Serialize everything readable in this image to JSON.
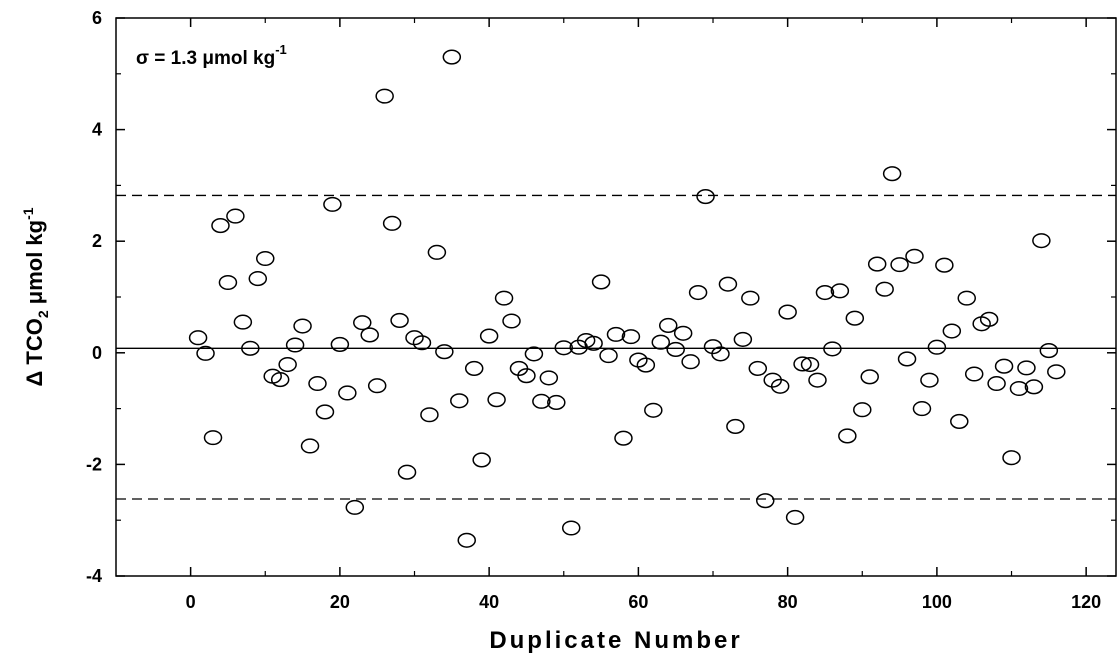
{
  "chart_data": {
    "type": "scatter",
    "xlabel": "Duplicate Number",
    "ylabel": {
      "prefix": "Δ TCO",
      "sub": "2",
      "unit": " μmol kg",
      "sup": "-1"
    },
    "annotation": {
      "text": "σ = 1.3 μmol kg",
      "sup": "-1"
    },
    "xlim": [
      -10,
      124
    ],
    "ylim": [
      -4,
      6
    ],
    "xticks": [
      0,
      20,
      40,
      60,
      80,
      100,
      120
    ],
    "yticks": [
      -4,
      -2,
      0,
      2,
      4,
      6
    ],
    "grid": false,
    "marker": "open-circle",
    "reference_lines": [
      {
        "y": 0.08,
        "style": "solid"
      },
      {
        "y": 2.82,
        "style": "dashed"
      },
      {
        "y": -2.62,
        "style": "dashed"
      }
    ],
    "points": [
      [
        1,
        0.27
      ],
      [
        2,
        -0.01
      ],
      [
        3,
        -1.52
      ],
      [
        4,
        2.28
      ],
      [
        5,
        1.26
      ],
      [
        6,
        2.45
      ],
      [
        7,
        0.55
      ],
      [
        8,
        0.08
      ],
      [
        9,
        1.33
      ],
      [
        10,
        1.69
      ],
      [
        11,
        -0.42
      ],
      [
        12,
        -0.48
      ],
      [
        13,
        -0.21
      ],
      [
        14,
        0.14
      ],
      [
        15,
        0.48
      ],
      [
        16,
        -1.67
      ],
      [
        17,
        -0.55
      ],
      [
        18,
        -1.06
      ],
      [
        19,
        2.66
      ],
      [
        20,
        0.15
      ],
      [
        21,
        -0.72
      ],
      [
        22,
        -2.77
      ],
      [
        23,
        0.54
      ],
      [
        24,
        0.32
      ],
      [
        25,
        -0.59
      ],
      [
        26,
        4.6
      ],
      [
        27,
        2.32
      ],
      [
        28,
        0.58
      ],
      [
        29,
        -2.14
      ],
      [
        30,
        0.27
      ],
      [
        31,
        0.18
      ],
      [
        32,
        -1.11
      ],
      [
        33,
        1.8
      ],
      [
        34,
        0.02
      ],
      [
        35,
        5.3
      ],
      [
        36,
        -0.86
      ],
      [
        37,
        -3.36
      ],
      [
        38,
        -0.28
      ],
      [
        39,
        -1.92
      ],
      [
        40,
        0.3
      ],
      [
        41,
        -0.84
      ],
      [
        42,
        0.98
      ],
      [
        43,
        0.57
      ],
      [
        44,
        -0.28
      ],
      [
        45,
        -0.41
      ],
      [
        46,
        -0.02
      ],
      [
        47,
        -0.87
      ],
      [
        48,
        -0.45
      ],
      [
        49,
        -0.89
      ],
      [
        50,
        0.09
      ],
      [
        51,
        -3.14
      ],
      [
        52,
        0.1
      ],
      [
        53,
        0.22
      ],
      [
        54,
        0.17
      ],
      [
        55,
        1.27
      ],
      [
        56,
        -0.05
      ],
      [
        57,
        0.33
      ],
      [
        58,
        -1.53
      ],
      [
        59,
        0.29
      ],
      [
        60,
        -0.13
      ],
      [
        61,
        -0.22
      ],
      [
        62,
        -1.03
      ],
      [
        63,
        0.19
      ],
      [
        64,
        0.49
      ],
      [
        65,
        0.06
      ],
      [
        66,
        0.35
      ],
      [
        67,
        -0.16
      ],
      [
        68,
        1.08
      ],
      [
        69,
        2.8
      ],
      [
        70,
        0.11
      ],
      [
        71,
        -0.02
      ],
      [
        72,
        1.23
      ],
      [
        73,
        -1.32
      ],
      [
        74,
        0.24
      ],
      [
        75,
        0.98
      ],
      [
        76,
        -0.28
      ],
      [
        77,
        -2.65
      ],
      [
        78,
        -0.49
      ],
      [
        79,
        -0.6
      ],
      [
        80,
        0.73
      ],
      [
        81,
        -2.95
      ],
      [
        82,
        -0.2
      ],
      [
        83,
        -0.21
      ],
      [
        84,
        -0.49
      ],
      [
        85,
        1.08
      ],
      [
        86,
        0.07
      ],
      [
        87,
        1.11
      ],
      [
        88,
        -1.49
      ],
      [
        89,
        0.62
      ],
      [
        90,
        -1.02
      ],
      [
        91,
        -0.43
      ],
      [
        92,
        1.59
      ],
      [
        93,
        1.14
      ],
      [
        94,
        3.21
      ],
      [
        95,
        1.58
      ],
      [
        96,
        -0.11
      ],
      [
        97,
        1.73
      ],
      [
        98,
        -1.0
      ],
      [
        99,
        -0.49
      ],
      [
        100,
        0.1
      ],
      [
        101,
        1.57
      ],
      [
        102,
        0.39
      ],
      [
        103,
        -1.23
      ],
      [
        104,
        0.98
      ],
      [
        105,
        -0.38
      ],
      [
        106,
        0.52
      ],
      [
        107,
        0.6
      ],
      [
        108,
        -0.55
      ],
      [
        109,
        -0.24
      ],
      [
        110,
        -1.88
      ],
      [
        111,
        -0.64
      ],
      [
        112,
        -0.27
      ],
      [
        113,
        -0.61
      ],
      [
        114,
        2.01
      ],
      [
        115,
        0.04
      ],
      [
        116,
        -0.34
      ]
    ]
  }
}
